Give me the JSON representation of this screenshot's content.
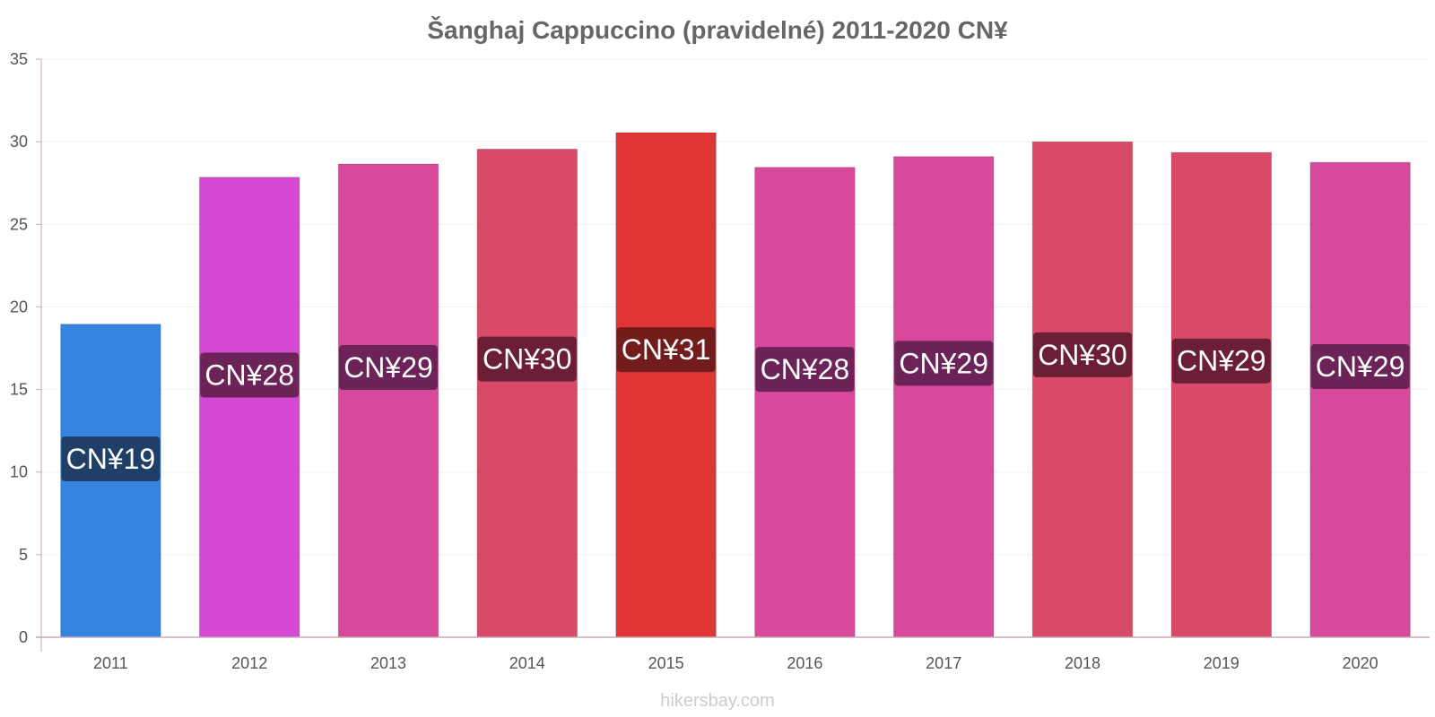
{
  "chart_data": {
    "type": "bar",
    "title": "Šanghaj Cappuccino (pravidelné) 2011-2020 CN¥",
    "categories": [
      "2011",
      "2012",
      "2013",
      "2014",
      "2015",
      "2016",
      "2017",
      "2018",
      "2019",
      "2020"
    ],
    "values": [
      18.95,
      27.85,
      28.65,
      29.55,
      30.55,
      28.45,
      29.1,
      30.0,
      29.35,
      28.75
    ],
    "data_labels": [
      "CN¥19",
      "CN¥28",
      "CN¥29",
      "CN¥30",
      "CN¥31",
      "CN¥28",
      "CN¥29",
      "CN¥30",
      "CN¥29",
      "CN¥29"
    ],
    "bar_colors": [
      "#3584e0",
      "#d649d4",
      "#d9499b",
      "#d94a68",
      "#e03535",
      "#d9499b",
      "#d9499b",
      "#d94a68",
      "#d94a68",
      "#d9499b"
    ],
    "label_bg_colors": [
      "#1f3f66",
      "#6b2358",
      "#6b2358",
      "#6b1f36",
      "#731c1c",
      "#6b2358",
      "#6b2358",
      "#6b1f36",
      "#6b1f36",
      "#6b2358"
    ],
    "ylim": [
      0,
      35
    ],
    "yticks": [
      0,
      5,
      10,
      15,
      20,
      25,
      30,
      35
    ],
    "xlabel": "",
    "ylabel": "",
    "grid": true,
    "source": "hikersbay.com"
  }
}
